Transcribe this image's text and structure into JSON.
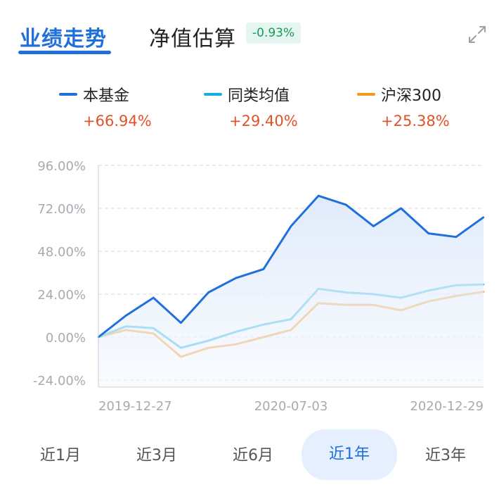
{
  "tabs": {
    "performance": "业绩走势",
    "estimate": "净值估算",
    "estimate_badge": "-0.93%"
  },
  "legend": [
    {
      "name": "本基金",
      "value": "+66.94%",
      "color": "#1f6fdc"
    },
    {
      "name": "同类均值",
      "value": "+29.40%",
      "color": "#15aee0"
    },
    {
      "name": "沪深300",
      "value": "+25.38%",
      "color": "#f39a1e"
    }
  ],
  "periods": [
    "近1月",
    "近3月",
    "近6月",
    "近1年",
    "近3年"
  ],
  "active_period": "近1年",
  "chart_data": {
    "type": "area",
    "title": "",
    "xlabel": "",
    "ylabel": "",
    "ylim": [
      -24,
      96
    ],
    "yticks": [
      96,
      72,
      48,
      24,
      0,
      -24
    ],
    "ytick_labels": [
      "96.00%",
      "72.00%",
      "48.00%",
      "24.00%",
      "0.00%",
      "-24.00%"
    ],
    "xtick_labels": [
      "2019-12-27",
      "2020-07-03",
      "2020-12-29"
    ],
    "grid": true,
    "legend": "top",
    "x": [
      "2019-11",
      "2019-12",
      "2020-01",
      "2020-02",
      "2020-03",
      "2020-04",
      "2020-05",
      "2020-06",
      "2020-07",
      "2020-08",
      "2020-09",
      "2020-10",
      "2020-11",
      "2020-12",
      "2021-01"
    ],
    "series": [
      {
        "name": "本基金",
        "color": "#1f6fdc",
        "values": [
          0,
          12,
          22,
          8,
          25,
          33,
          38,
          62,
          79,
          74,
          62,
          72,
          58,
          56,
          67
        ],
        "fill": true
      },
      {
        "name": "同类均值",
        "color": "#15aee0",
        "values": [
          0,
          6,
          5,
          -6,
          -2,
          3,
          7,
          10,
          27,
          25,
          24,
          22,
          26,
          29,
          29.4
        ]
      },
      {
        "name": "沪深300",
        "color": "#f39a1e",
        "values": [
          0,
          4,
          2,
          -11,
          -6,
          -4,
          0,
          4,
          19,
          18,
          18,
          15,
          20,
          23,
          25.38
        ]
      }
    ]
  }
}
